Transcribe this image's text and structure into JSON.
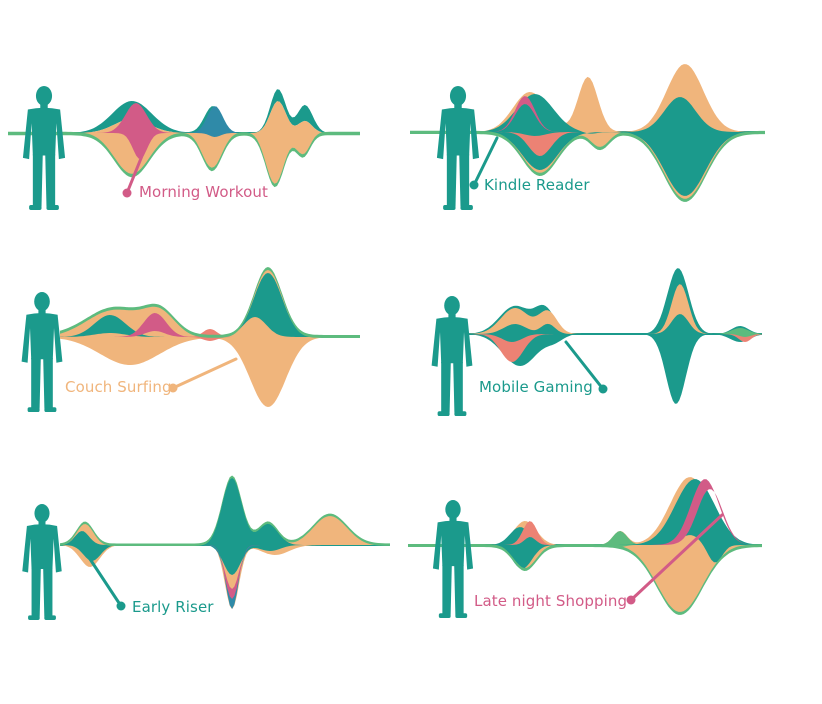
{
  "colors": {
    "teal": "#1b9a8c",
    "orange": "#f0b57c",
    "pink": "#d25b87",
    "salmon": "#ec8274",
    "blue": "#2f8aa8",
    "green": "#5dbb7e",
    "axis": "#1b9a8c"
  },
  "panels": [
    {
      "label": "Morning Workout",
      "label_color": "#d25b87"
    },
    {
      "label": "Kindle Reader",
      "label_color": "#1b9a8c"
    },
    {
      "label": "Couch Surfing",
      "label_color": "#f0b57c"
    },
    {
      "label": "Mobile Gaming",
      "label_color": "#1b9a8c"
    },
    {
      "label": "Early Riser",
      "label_color": "#1b9a8c"
    },
    {
      "label": "Late night Shopping",
      "label_color": "#d25b87"
    }
  ]
}
